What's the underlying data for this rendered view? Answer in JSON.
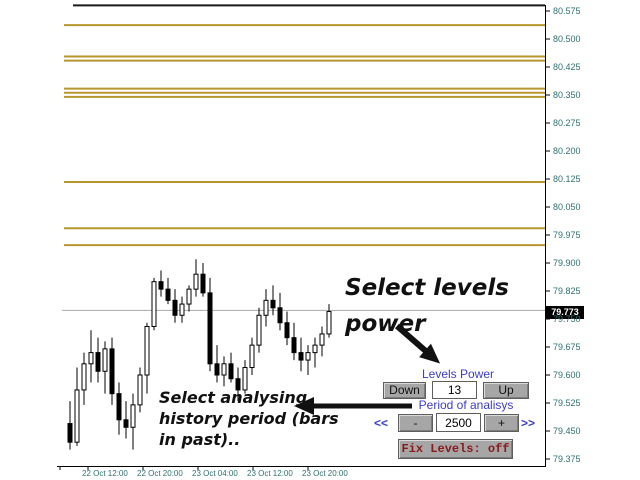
{
  "colors": {
    "background": "#ffffff",
    "axis_line": "#000000",
    "axis_text": "#2f6f6f",
    "level_gold": "#b8962e",
    "level_black": "#1a1a1a",
    "current_price_line": "#a8a8a8",
    "badge_bg": "#000000",
    "badge_text": "#ffffff",
    "panel_label_text": "#3b3bcd",
    "button_bg": "#a6a6a6",
    "fix_button_text": "#8b1a1a",
    "candle_bull": "#ffffff",
    "candle_bear": "#000000"
  },
  "chart_data": {
    "type": "candlestick",
    "current_price": "79.773",
    "price_axis": {
      "min": 79.375,
      "max": 80.575,
      "step": 0.075,
      "ticks": [
        "80.575",
        "80.500",
        "80.425",
        "80.350",
        "80.275",
        "80.200",
        "80.125",
        "80.050",
        "79.975",
        "79.900",
        "79.825",
        "79.750",
        "79.675",
        "79.600",
        "79.525",
        "79.450",
        "79.375"
      ]
    },
    "time_axis": {
      "labels": [
        "22 Oct 12:00",
        "22 Oct 20:00",
        "23 Oct 04:00",
        "23 Oct 12:00",
        "23 Oct 20:00"
      ]
    },
    "levels": [
      {
        "price": 80.59,
        "style": "black"
      },
      {
        "price": 80.537,
        "style": "gold"
      },
      {
        "price": 80.453,
        "style": "gold"
      },
      {
        "price": 80.442,
        "style": "gold"
      },
      {
        "price": 80.367,
        "style": "gold"
      },
      {
        "price": 80.356,
        "style": "gold"
      },
      {
        "price": 80.345,
        "style": "gold"
      },
      {
        "price": 80.117,
        "style": "gold"
      },
      {
        "price": 79.993,
        "style": "gold"
      },
      {
        "price": 79.948,
        "style": "gold"
      }
    ],
    "candles": [
      {
        "o": 79.47,
        "h": 79.53,
        "l": 79.4,
        "c": 79.42
      },
      {
        "o": 79.42,
        "h": 79.62,
        "l": 79.41,
        "c": 79.56
      },
      {
        "o": 79.56,
        "h": 79.66,
        "l": 79.52,
        "c": 79.63
      },
      {
        "o": 79.63,
        "h": 79.72,
        "l": 79.58,
        "c": 79.66
      },
      {
        "o": 79.66,
        "h": 79.7,
        "l": 79.58,
        "c": 79.61
      },
      {
        "o": 79.61,
        "h": 79.69,
        "l": 79.55,
        "c": 79.67
      },
      {
        "o": 79.67,
        "h": 79.7,
        "l": 79.52,
        "c": 79.55
      },
      {
        "o": 79.55,
        "h": 79.58,
        "l": 79.44,
        "c": 79.48
      },
      {
        "o": 79.48,
        "h": 79.53,
        "l": 79.43,
        "c": 79.46
      },
      {
        "o": 79.46,
        "h": 79.55,
        "l": 79.4,
        "c": 79.52
      },
      {
        "o": 79.52,
        "h": 79.62,
        "l": 79.5,
        "c": 79.6
      },
      {
        "o": 79.6,
        "h": 79.74,
        "l": 79.55,
        "c": 79.73
      },
      {
        "o": 79.73,
        "h": 79.86,
        "l": 79.72,
        "c": 79.85
      },
      {
        "o": 79.85,
        "h": 79.88,
        "l": 79.81,
        "c": 79.83
      },
      {
        "o": 79.83,
        "h": 79.86,
        "l": 79.79,
        "c": 79.8
      },
      {
        "o": 79.8,
        "h": 79.83,
        "l": 79.74,
        "c": 79.76
      },
      {
        "o": 79.76,
        "h": 79.81,
        "l": 79.74,
        "c": 79.79
      },
      {
        "o": 79.79,
        "h": 79.84,
        "l": 79.77,
        "c": 79.83
      },
      {
        "o": 79.83,
        "h": 79.91,
        "l": 79.81,
        "c": 79.87
      },
      {
        "o": 79.87,
        "h": 79.9,
        "l": 79.81,
        "c": 79.82
      },
      {
        "o": 79.82,
        "h": 79.86,
        "l": 79.61,
        "c": 79.63
      },
      {
        "o": 79.63,
        "h": 79.68,
        "l": 79.58,
        "c": 79.6
      },
      {
        "o": 79.6,
        "h": 79.65,
        "l": 79.57,
        "c": 79.63
      },
      {
        "o": 79.63,
        "h": 79.66,
        "l": 79.58,
        "c": 79.59
      },
      {
        "o": 79.59,
        "h": 79.62,
        "l": 79.53,
        "c": 79.56
      },
      {
        "o": 79.56,
        "h": 79.64,
        "l": 79.55,
        "c": 79.62
      },
      {
        "o": 79.62,
        "h": 79.7,
        "l": 79.6,
        "c": 79.68
      },
      {
        "o": 79.68,
        "h": 79.78,
        "l": 79.66,
        "c": 79.76
      },
      {
        "o": 79.76,
        "h": 79.83,
        "l": 79.73,
        "c": 79.8
      },
      {
        "o": 79.8,
        "h": 79.84,
        "l": 79.76,
        "c": 79.78
      },
      {
        "o": 79.78,
        "h": 79.82,
        "l": 79.72,
        "c": 79.74
      },
      {
        "o": 79.74,
        "h": 79.77,
        "l": 79.68,
        "c": 79.7
      },
      {
        "o": 79.7,
        "h": 79.74,
        "l": 79.64,
        "c": 79.66
      },
      {
        "o": 79.66,
        "h": 79.7,
        "l": 79.61,
        "c": 79.64
      },
      {
        "o": 79.64,
        "h": 79.68,
        "l": 79.6,
        "c": 79.66
      },
      {
        "o": 79.66,
        "h": 79.7,
        "l": 79.62,
        "c": 79.68
      },
      {
        "o": 79.68,
        "h": 79.73,
        "l": 79.65,
        "c": 79.71
      },
      {
        "o": 79.71,
        "h": 79.79,
        "l": 79.7,
        "c": 79.77
      }
    ]
  },
  "annotations": {
    "select_levels_power": {
      "line1": "Select levels",
      "line2": "power"
    },
    "select_history": {
      "line1": "Select analysing",
      "line2": "history period (bars",
      "line3": "in past).."
    }
  },
  "panel": {
    "levels_power_label": "Levels Power",
    "down_button": "Down",
    "levels_value": "13",
    "up_button": "Up",
    "period_label": "Period of analisys",
    "fast_decrease": "<<",
    "decrease_button": "-",
    "period_value": "2500",
    "increase_button": "+",
    "fast_increase": ">>",
    "fix_levels_button": "Fix Levels: off"
  }
}
